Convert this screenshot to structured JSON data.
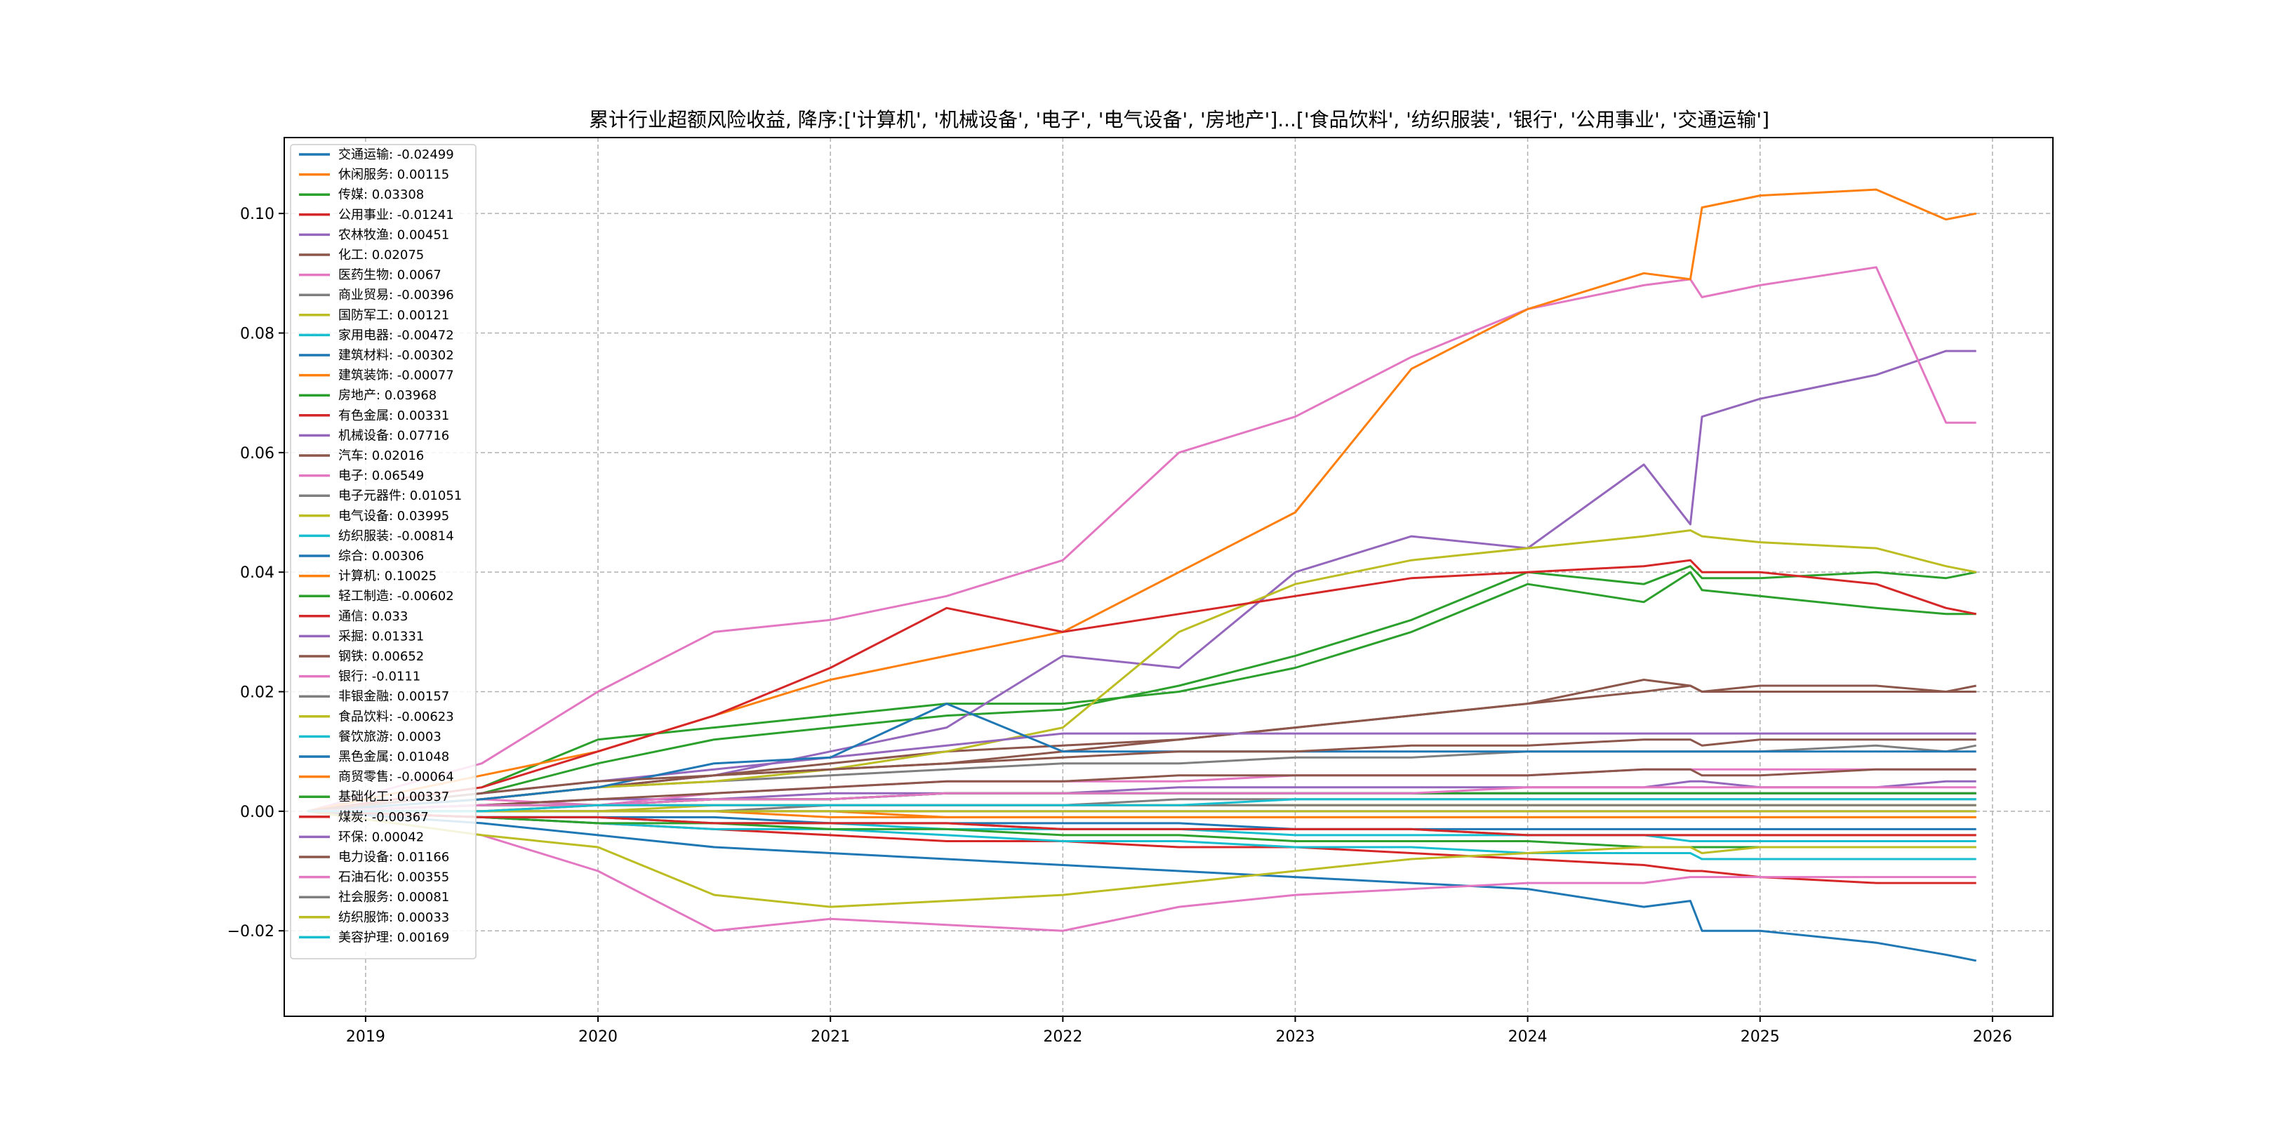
{
  "chart_data": {
    "type": "line",
    "title": "累计行业超额风险收益,  降序:['计算机', '机械设备', '电子', '电气设备', '房地产']...['食品饮料', '纺织服装', '银行', '公用事业', '交通运输']",
    "xlabel": "",
    "ylabel": "",
    "x_ticks": [
      "2019",
      "2020",
      "2021",
      "2022",
      "2023",
      "2024",
      "2025",
      "2026"
    ],
    "y_ticks": [
      "−0.02",
      "0.00",
      "0.02",
      "0.04",
      "0.06",
      "0.08",
      "0.10"
    ],
    "xlim": [
      2018.65,
      2026.26
    ],
    "ylim": [
      -0.0343,
      0.1127
    ],
    "grid": true,
    "legend_position": "upper-left",
    "x": [
      2018.75,
      2019.5,
      2020.0,
      2020.5,
      2021.0,
      2021.5,
      2022.0,
      2022.5,
      2023.0,
      2023.5,
      2024.0,
      2024.5,
      2024.7,
      2024.75,
      2025.0,
      2025.5,
      2025.8,
      2025.93
    ],
    "series": [
      {
        "name": "交通运输: -0.02499",
        "color": "#1f77b4",
        "values": [
          0.0,
          -0.002,
          -0.004,
          -0.006,
          -0.007,
          -0.008,
          -0.009,
          -0.01,
          -0.011,
          -0.012,
          -0.013,
          -0.016,
          -0.015,
          -0.02,
          -0.02,
          -0.022,
          -0.024,
          -0.025
        ]
      },
      {
        "name": "休闲服务: 0.00115",
        "color": "#ff7f0e",
        "values": [
          0.0,
          0.0,
          0.001,
          0.001,
          0.001,
          0.001,
          0.001,
          0.001,
          0.001,
          0.001,
          0.001,
          0.001,
          0.001,
          0.001,
          0.001,
          0.001,
          0.001,
          0.001
        ]
      },
      {
        "name": "传媒: 0.03308",
        "color": "#2ca02c",
        "values": [
          0.0,
          0.004,
          0.012,
          0.014,
          0.016,
          0.018,
          0.018,
          0.02,
          0.024,
          0.03,
          0.038,
          0.035,
          0.04,
          0.037,
          0.036,
          0.034,
          0.033,
          0.033
        ]
      },
      {
        "name": "公用事业: -0.01241",
        "color": "#d62728",
        "values": [
          0.0,
          -0.001,
          -0.002,
          -0.003,
          -0.004,
          -0.005,
          -0.005,
          -0.006,
          -0.006,
          -0.007,
          -0.008,
          -0.009,
          -0.01,
          -0.01,
          -0.011,
          -0.012,
          -0.012,
          -0.012
        ]
      },
      {
        "name": "农林牧渔: 0.00451",
        "color": "#9467bd",
        "values": [
          0.0,
          0.001,
          0.002,
          0.002,
          0.003,
          0.003,
          0.003,
          0.004,
          0.004,
          0.004,
          0.004,
          0.004,
          0.005,
          0.005,
          0.004,
          0.004,
          0.005,
          0.005
        ]
      },
      {
        "name": "化工: 0.02075",
        "color": "#8c564b",
        "values": [
          0.0,
          0.002,
          0.004,
          0.006,
          0.007,
          0.008,
          0.01,
          0.012,
          0.014,
          0.016,
          0.018,
          0.022,
          0.021,
          0.02,
          0.021,
          0.021,
          0.02,
          0.021
        ]
      },
      {
        "name": "医药生物: 0.0067",
        "color": "#e377c2",
        "values": [
          0.0,
          0.002,
          0.001,
          0.003,
          0.004,
          0.005,
          0.005,
          0.005,
          0.006,
          0.006,
          0.006,
          0.007,
          0.007,
          0.007,
          0.007,
          0.007,
          0.007,
          0.007
        ]
      },
      {
        "name": "商业贸易: -0.00396",
        "color": "#7f7f7f",
        "values": [
          0.0,
          -0.001,
          -0.001,
          -0.002,
          -0.002,
          -0.002,
          -0.003,
          -0.003,
          -0.003,
          -0.003,
          -0.004,
          -0.004,
          -0.004,
          -0.004,
          -0.004,
          -0.004,
          -0.004,
          -0.004
        ]
      },
      {
        "name": "国防军工: 0.00121",
        "color": "#bcbd22",
        "values": [
          0.0,
          0.0,
          0.0,
          0.001,
          0.001,
          0.001,
          0.001,
          0.001,
          0.001,
          0.001,
          0.001,
          0.001,
          0.001,
          0.001,
          0.001,
          0.001,
          0.001,
          0.001
        ]
      },
      {
        "name": "家用电器: -0.00472",
        "color": "#17becf",
        "values": [
          0.0,
          -0.001,
          -0.001,
          -0.002,
          -0.002,
          -0.003,
          -0.003,
          -0.003,
          -0.004,
          -0.004,
          -0.004,
          -0.004,
          -0.005,
          -0.005,
          -0.005,
          -0.005,
          -0.005,
          -0.005
        ]
      },
      {
        "name": "建筑材料: -0.00302",
        "color": "#1f77b4",
        "values": [
          0.0,
          -0.001,
          -0.001,
          -0.001,
          -0.002,
          -0.002,
          -0.002,
          -0.002,
          -0.003,
          -0.003,
          -0.003,
          -0.003,
          -0.003,
          -0.003,
          -0.003,
          -0.003,
          -0.003,
          -0.003
        ]
      },
      {
        "name": "建筑装饰: -0.00077",
        "color": "#ff7f0e",
        "values": [
          0.0,
          0.0,
          0.0,
          0.0,
          -0.001,
          -0.001,
          -0.001,
          -0.001,
          -0.001,
          -0.001,
          -0.001,
          -0.001,
          -0.001,
          -0.001,
          -0.001,
          -0.001,
          -0.001,
          -0.001
        ]
      },
      {
        "name": "房地产: 0.03968",
        "color": "#2ca02c",
        "values": [
          0.0,
          0.003,
          0.008,
          0.012,
          0.014,
          0.016,
          0.017,
          0.021,
          0.026,
          0.032,
          0.04,
          0.038,
          0.041,
          0.039,
          0.039,
          0.04,
          0.039,
          0.04
        ]
      },
      {
        "name": "有色金属: 0.00331",
        "color": "#d62728",
        "values": [
          0.0,
          0.001,
          0.001,
          0.002,
          0.002,
          0.003,
          0.003,
          0.003,
          0.003,
          0.003,
          0.003,
          0.003,
          0.003,
          0.003,
          0.003,
          0.003,
          0.003,
          0.003
        ]
      },
      {
        "name": "机械设备: 0.07716",
        "color": "#9467bd",
        "values": [
          0.0,
          0.002,
          0.004,
          0.006,
          0.01,
          0.014,
          0.026,
          0.024,
          0.04,
          0.046,
          0.044,
          0.058,
          0.048,
          0.066,
          0.069,
          0.073,
          0.077,
          0.077
        ]
      },
      {
        "name": "汽车: 0.02016",
        "color": "#8c564b",
        "values": [
          0.0,
          0.002,
          0.004,
          0.006,
          0.008,
          0.01,
          0.011,
          0.012,
          0.014,
          0.016,
          0.018,
          0.02,
          0.021,
          0.02,
          0.02,
          0.02,
          0.02,
          0.02
        ]
      },
      {
        "name": "电子: 0.06549",
        "color": "#e377c2",
        "values": [
          0.0,
          0.008,
          0.02,
          0.03,
          0.032,
          0.036,
          0.042,
          0.06,
          0.066,
          0.076,
          0.084,
          0.088,
          0.089,
          0.086,
          0.088,
          0.091,
          0.065,
          0.065
        ]
      },
      {
        "name": "电子元器件: 0.01051",
        "color": "#7f7f7f",
        "values": [
          0.0,
          0.002,
          0.004,
          0.005,
          0.006,
          0.007,
          0.008,
          0.008,
          0.009,
          0.009,
          0.01,
          0.01,
          0.01,
          0.01,
          0.01,
          0.011,
          0.01,
          0.011
        ]
      },
      {
        "name": "电气设备: 0.03995",
        "color": "#bcbd22",
        "values": [
          0.0,
          0.002,
          0.004,
          0.005,
          0.007,
          0.01,
          0.014,
          0.03,
          0.038,
          0.042,
          0.044,
          0.046,
          0.047,
          0.046,
          0.045,
          0.044,
          0.041,
          0.04
        ]
      },
      {
        "name": "纺织服装: -0.00814",
        "color": "#17becf",
        "values": [
          0.0,
          -0.001,
          -0.002,
          -0.003,
          -0.003,
          -0.004,
          -0.005,
          -0.005,
          -0.006,
          -0.006,
          -0.007,
          -0.007,
          -0.007,
          -0.008,
          -0.008,
          -0.008,
          -0.008,
          -0.008
        ]
      },
      {
        "name": "综合: 0.00306",
        "color": "#1f77b4",
        "values": [
          0.0,
          0.001,
          0.001,
          0.002,
          0.002,
          0.003,
          0.003,
          0.003,
          0.003,
          0.003,
          0.003,
          0.003,
          0.003,
          0.003,
          0.003,
          0.003,
          0.003,
          0.003
        ]
      },
      {
        "name": "计算机: 0.10025",
        "color": "#ff7f0e",
        "values": [
          0.0,
          0.006,
          0.01,
          0.016,
          0.022,
          0.026,
          0.03,
          0.04,
          0.05,
          0.074,
          0.084,
          0.09,
          0.089,
          0.101,
          0.103,
          0.104,
          0.099,
          0.1
        ]
      },
      {
        "name": "轻工制造: -0.00602",
        "color": "#2ca02c",
        "values": [
          0.0,
          -0.001,
          -0.002,
          -0.002,
          -0.003,
          -0.003,
          -0.004,
          -0.004,
          -0.005,
          -0.005,
          -0.005,
          -0.006,
          -0.006,
          -0.006,
          -0.006,
          -0.006,
          -0.006,
          -0.006
        ]
      },
      {
        "name": "通信: 0.033",
        "color": "#d62728",
        "values": [
          0.0,
          0.004,
          0.01,
          0.016,
          0.024,
          0.034,
          0.03,
          0.033,
          0.036,
          0.039,
          0.04,
          0.041,
          0.042,
          0.04,
          0.04,
          0.038,
          0.034,
          0.033
        ]
      },
      {
        "name": "采掘: 0.01331",
        "color": "#9467bd",
        "values": [
          0.0,
          0.003,
          0.005,
          0.007,
          0.009,
          0.011,
          0.013,
          0.013,
          0.013,
          0.013,
          0.013,
          0.013,
          0.013,
          0.013,
          0.013,
          0.013,
          0.013,
          0.013
        ]
      },
      {
        "name": "钢铁: 0.00652",
        "color": "#8c564b",
        "values": [
          0.0,
          0.001,
          0.002,
          0.003,
          0.004,
          0.005,
          0.005,
          0.006,
          0.006,
          0.006,
          0.006,
          0.007,
          0.007,
          0.006,
          0.006,
          0.007,
          0.007,
          0.007
        ]
      },
      {
        "name": "银行: -0.0111",
        "color": "#e377c2",
        "values": [
          0.0,
          -0.004,
          -0.01,
          -0.02,
          -0.018,
          -0.019,
          -0.02,
          -0.016,
          -0.014,
          -0.013,
          -0.012,
          -0.012,
          -0.011,
          -0.011,
          -0.011,
          -0.011,
          -0.011,
          -0.011
        ]
      },
      {
        "name": "非银金融: 0.00157",
        "color": "#7f7f7f",
        "values": [
          0.0,
          0.0,
          0.001,
          0.001,
          0.001,
          0.001,
          0.001,
          0.002,
          0.002,
          0.002,
          0.002,
          0.002,
          0.002,
          0.002,
          0.002,
          0.002,
          0.002,
          0.002
        ]
      },
      {
        "name": "食品饮料: -0.00623",
        "color": "#bcbd22",
        "values": [
          0.0,
          -0.004,
          -0.006,
          -0.014,
          -0.016,
          -0.015,
          -0.014,
          -0.012,
          -0.01,
          -0.008,
          -0.007,
          -0.006,
          -0.006,
          -0.007,
          -0.006,
          -0.006,
          -0.006,
          -0.006
        ]
      },
      {
        "name": "餐饮旅游: 0.0003",
        "color": "#17becf",
        "values": [
          0.0,
          0.0,
          0.0,
          0.0,
          0.0,
          0.0,
          0.0,
          0.0,
          0.0,
          0.0,
          0.0,
          0.0,
          0.0,
          0.0,
          0.0,
          0.0,
          0.0,
          0.0
        ]
      },
      {
        "name": "黑色金属: 0.01048",
        "color": "#1f77b4",
        "values": [
          0.0,
          0.002,
          0.004,
          0.008,
          0.009,
          0.018,
          0.01,
          0.01,
          0.01,
          0.01,
          0.01,
          0.01,
          0.01,
          0.01,
          0.01,
          0.01,
          0.01,
          0.01
        ]
      },
      {
        "name": "商贸零售: -0.00064",
        "color": "#ff7f0e",
        "values": [
          0.0,
          0.0,
          0.0,
          0.0,
          0.0,
          -0.001,
          -0.001,
          -0.001,
          -0.001,
          -0.001,
          -0.001,
          -0.001,
          -0.001,
          -0.001,
          -0.001,
          -0.001,
          -0.001,
          -0.001
        ]
      },
      {
        "name": "基础化工: 0.00337",
        "color": "#2ca02c",
        "values": [
          0.0,
          0.001,
          0.001,
          0.002,
          0.002,
          0.003,
          0.003,
          0.003,
          0.003,
          0.003,
          0.003,
          0.003,
          0.003,
          0.003,
          0.003,
          0.003,
          0.003,
          0.003
        ]
      },
      {
        "name": "煤炭: -0.00367",
        "color": "#d62728",
        "values": [
          0.0,
          -0.001,
          -0.001,
          -0.002,
          -0.002,
          -0.002,
          -0.003,
          -0.003,
          -0.003,
          -0.003,
          -0.004,
          -0.004,
          -0.004,
          -0.004,
          -0.004,
          -0.004,
          -0.004,
          -0.004
        ]
      },
      {
        "name": "环保: 0.00042",
        "color": "#9467bd",
        "values": [
          0.0,
          0.0,
          0.0,
          0.0,
          0.0,
          0.0,
          0.0,
          0.0,
          0.0,
          0.0,
          0.0,
          0.0,
          0.0,
          0.0,
          0.0,
          0.0,
          0.0,
          0.0
        ]
      },
      {
        "name": "电力设备: 0.01166",
        "color": "#8c564b",
        "values": [
          0.0,
          0.003,
          0.005,
          0.006,
          0.007,
          0.008,
          0.009,
          0.01,
          0.01,
          0.011,
          0.011,
          0.012,
          0.012,
          0.011,
          0.012,
          0.012,
          0.012,
          0.012
        ]
      },
      {
        "name": "石油石化: 0.00355",
        "color": "#e377c2",
        "values": [
          0.0,
          0.001,
          0.001,
          0.002,
          0.002,
          0.003,
          0.003,
          0.003,
          0.003,
          0.003,
          0.004,
          0.004,
          0.004,
          0.004,
          0.004,
          0.004,
          0.004,
          0.004
        ]
      },
      {
        "name": "社会服务: 0.00081",
        "color": "#7f7f7f",
        "values": [
          0.0,
          0.0,
          0.0,
          0.0,
          0.001,
          0.001,
          0.001,
          0.001,
          0.001,
          0.001,
          0.001,
          0.001,
          0.001,
          0.001,
          0.001,
          0.001,
          0.001,
          0.001
        ]
      },
      {
        "name": "纺织服饰: 0.00033",
        "color": "#bcbd22",
        "values": [
          0.0,
          0.0,
          0.0,
          0.0,
          0.0,
          0.0,
          0.0,
          0.0,
          0.0,
          0.0,
          0.0,
          0.0,
          0.0,
          0.0,
          0.0,
          0.0,
          0.0,
          0.0
        ]
      },
      {
        "name": "美容护理: 0.00169",
        "color": "#17becf",
        "values": [
          0.0,
          0.0,
          0.001,
          0.001,
          0.001,
          0.001,
          0.001,
          0.001,
          0.002,
          0.002,
          0.002,
          0.002,
          0.002,
          0.002,
          0.002,
          0.002,
          0.002,
          0.002
        ]
      }
    ]
  }
}
